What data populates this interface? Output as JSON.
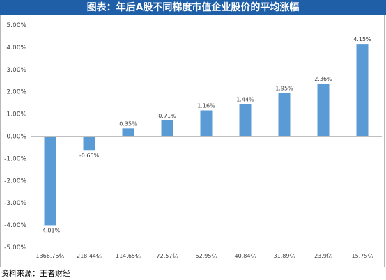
{
  "title": "图表：年后A股不同梯度市值企业股价的平均涨幅",
  "source": "资料来源：王者财经",
  "colors": {
    "title_bg": "#1f5fa8",
    "bar": "#5b9bd5",
    "axis": "#bfbfbf"
  },
  "chart_data": {
    "type": "bar",
    "categories": [
      "1366.75亿",
      "218.44亿",
      "114.65亿",
      "72.57亿",
      "52.95亿",
      "40.84亿",
      "31.89亿",
      "23.9亿",
      "15.75亿"
    ],
    "values": [
      -4.01,
      -0.65,
      0.35,
      0.71,
      1.16,
      1.44,
      1.95,
      2.36,
      4.15
    ],
    "value_labels": [
      "-4.01%",
      "-0.65%",
      "0.35%",
      "0.71%",
      "1.16%",
      "1.44%",
      "1.95%",
      "2.36%",
      "4.15%"
    ],
    "yticks": [
      5,
      4,
      3,
      2,
      1,
      0,
      -1,
      -2,
      -3,
      -4,
      -5
    ],
    "ytick_labels": [
      "5.00%",
      "4.00%",
      "3.00%",
      "2.00%",
      "1.00%",
      "0.00%",
      "-1.00%",
      "-2.00%",
      "-3.00%",
      "-4.00%",
      "-5.00%"
    ],
    "ylim": [
      -5,
      5
    ],
    "grid": false,
    "xlabel": "",
    "ylabel": ""
  }
}
